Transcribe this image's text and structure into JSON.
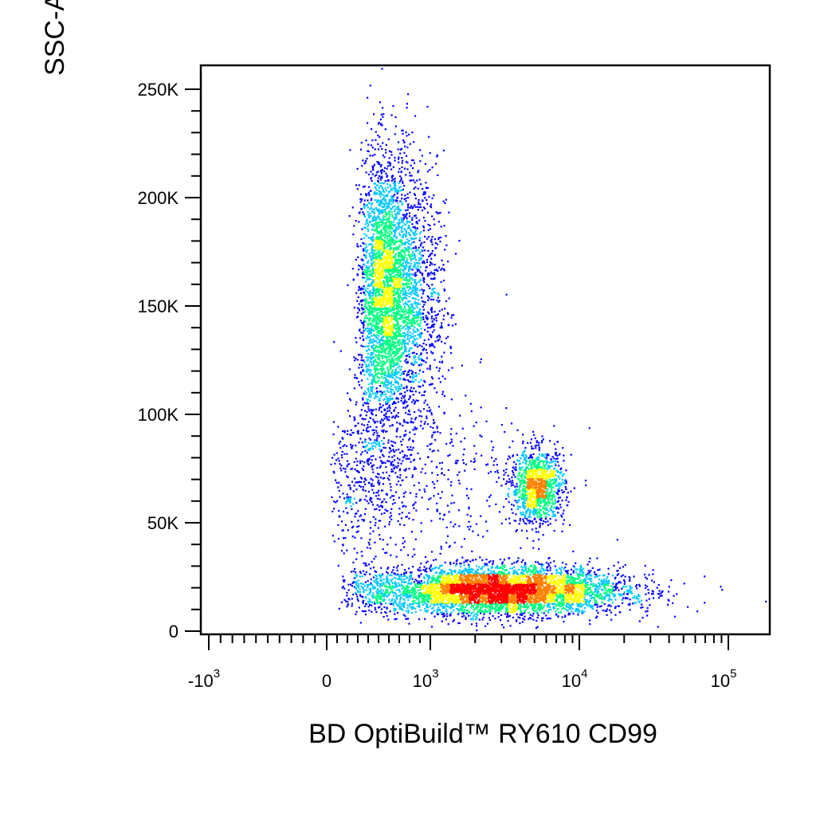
{
  "chart_data": {
    "type": "scatter",
    "xlabel": "BD OptiBuild™ RY610 CD99",
    "ylabel": "SSC-A",
    "x_scale": "biexponential",
    "y_scale": "linear",
    "ylim": [
      0,
      262144
    ],
    "y_ticks": [
      {
        "value": 0,
        "label": "0"
      },
      {
        "value": 50000,
        "label": "50K"
      },
      {
        "value": 100000,
        "label": "100K"
      },
      {
        "value": 150000,
        "label": "150K"
      },
      {
        "value": 200000,
        "label": "200K"
      },
      {
        "value": 250000,
        "label": "250K"
      }
    ],
    "x_ticks": [
      {
        "value": -1000,
        "base": "-10",
        "exp": "3"
      },
      {
        "value": 0,
        "base": "0",
        "exp": ""
      },
      {
        "value": 1000,
        "base": "10",
        "exp": "3"
      },
      {
        "value": 10000,
        "base": "10",
        "exp": "4"
      },
      {
        "value": 100000,
        "base": "10",
        "exp": "5"
      }
    ],
    "density_colors": [
      "#0000ff",
      "#00c8ff",
      "#00ff80",
      "#ffff00",
      "#ff8000",
      "#ff0000"
    ],
    "populations": [
      {
        "x_center": 600,
        "y_center": 155000,
        "x_log_sd": 0.13,
        "y_sd": 32000,
        "count": 4200
      },
      {
        "x_center": 5200,
        "y_center": 67000,
        "x_log_sd": 0.09,
        "y_sd": 8500,
        "count": 1200
      },
      {
        "x_center": 2800,
        "y_center": 19000,
        "x_log_sd": 0.42,
        "y_sd": 5500,
        "count": 5200
      },
      {
        "x_center": 550,
        "y_center": 70000,
        "x_log_sd": 0.4,
        "y_sd": 20000,
        "count": 700
      }
    ],
    "grid": false,
    "legend": "none"
  }
}
